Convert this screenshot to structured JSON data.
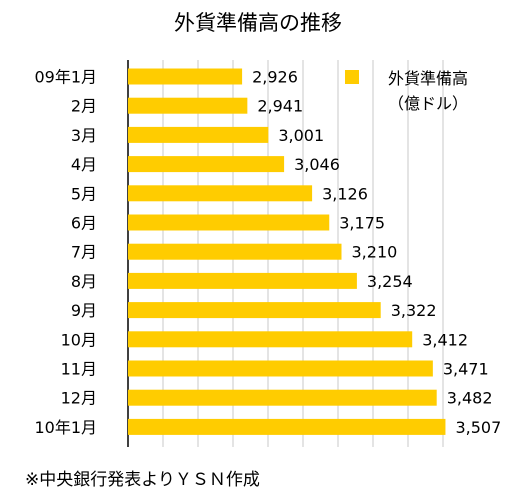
{
  "chart_data": {
    "type": "bar",
    "orientation": "horizontal",
    "title": "外貨準備高の推移",
    "categories": [
      "09年1月",
      "2月",
      "3月",
      "4月",
      "5月",
      "6月",
      "7月",
      "8月",
      "9月",
      "10月",
      "11月",
      "12月",
      "10年1月"
    ],
    "series": [
      {
        "name": "外貨準備高",
        "values": [
          2926,
          2941,
          3001,
          3046,
          3126,
          3175,
          3210,
          3254,
          3322,
          3412,
          3471,
          3482,
          3507
        ],
        "value_labels": [
          "2,926",
          "2,941",
          "3,001",
          "3,046",
          "3,126",
          "3,175",
          "3,210",
          "3,254",
          "3,322",
          "3,412",
          "3,471",
          "3,482",
          "3,507"
        ]
      }
    ],
    "legend": {
      "line1": "外貨準備高",
      "line2": "（億ドル）",
      "placement": "top-right"
    },
    "xlim": [
      2600,
      3600
    ],
    "grid": true,
    "color": "#FFCC00",
    "footnote": "※中央銀行発表よりＹＳＮ作成"
  }
}
